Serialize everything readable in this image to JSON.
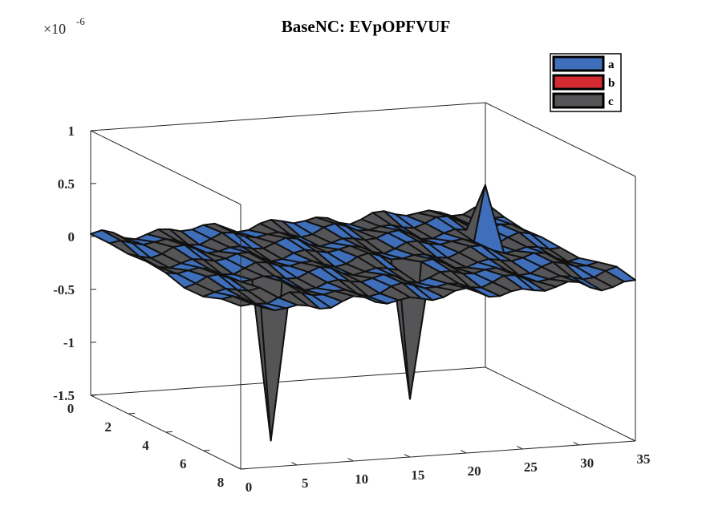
{
  "chart_data": {
    "type": "surface",
    "title": "BaseNC: EVpOPFVUF",
    "z_exponent_label": "×10",
    "z_exponent_power": "-6",
    "x_range": [
      0,
      35
    ],
    "y_range": [
      0,
      8
    ],
    "z_range": [
      -1.5,
      1
    ],
    "x_ticks": [
      "0",
      "5",
      "10",
      "15",
      "20",
      "25",
      "30",
      "35"
    ],
    "y_ticks": [
      "0",
      "2",
      "4",
      "6",
      "8"
    ],
    "z_ticks": [
      "-1.5",
      "-1",
      "-0.5",
      "0",
      "0.5",
      "1"
    ],
    "grid": false,
    "legend_position": "top-right",
    "series": [
      {
        "name": "a",
        "color": "#3f6fba"
      },
      {
        "name": "b",
        "color": "#d42a32"
      },
      {
        "name": "c",
        "color": "#555558"
      }
    ],
    "notable_values": [
      {
        "x": 6,
        "y": 6,
        "z": -1.45
      },
      {
        "x": 20,
        "y": 5,
        "z": -1.25
      },
      {
        "x": 30,
        "y": 3,
        "z": 0.52
      }
    ]
  }
}
